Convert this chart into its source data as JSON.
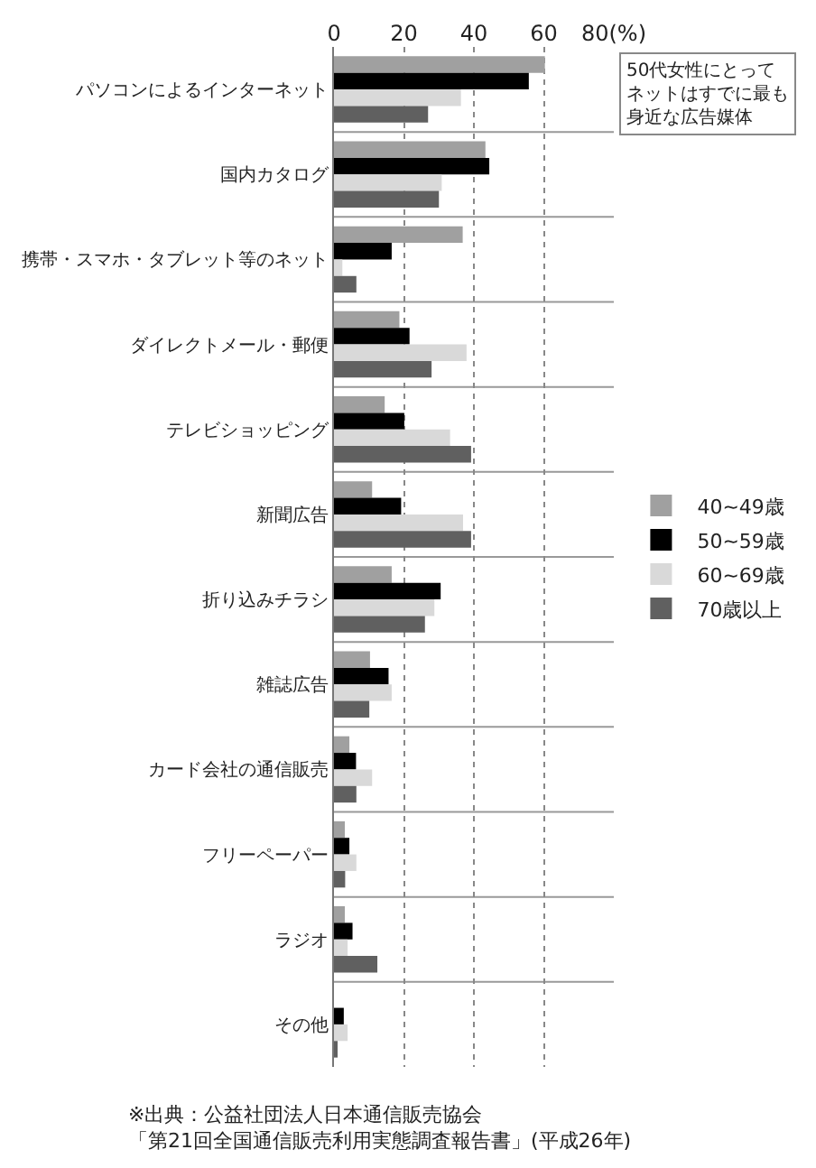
{
  "chart_data": {
    "type": "bar",
    "orientation": "horizontal",
    "categories": [
      "パソコンによるインターネット",
      "国内カタログ",
      "携帯・スマホ・タブレット等のネット",
      "ダイレクトメール・郵便",
      "テレビショッピング",
      "新聞広告",
      "折り込みチラシ",
      "雑誌広告",
      "カード会社の通信販売",
      "フリーペーパー",
      "ラジオ",
      "その他"
    ],
    "series": [
      {
        "name": "40~49歳",
        "color": "#a0a0a0",
        "values": [
          60.3,
          43.3,
          36.8,
          18.7,
          14.5,
          10.9,
          16.5,
          10.3,
          4.4,
          3.1,
          3.1,
          0
        ]
      },
      {
        "name": "50~59歳",
        "color": "#000000",
        "values": [
          55.7,
          44.4,
          16.5,
          21.6,
          20.1,
          19.2,
          30.5,
          15.6,
          6.3,
          4.4,
          5.3,
          2.8
        ]
      },
      {
        "name": "60~69歳",
        "color": "#d9d9d9",
        "values": [
          36.3,
          30.8,
          2.4,
          37.9,
          33.2,
          36.9,
          28.7,
          16.5,
          10.9,
          6.4,
          3.9,
          3.9
        ]
      },
      {
        "name": "70歳以上",
        "color": "#606060",
        "values": [
          26.9,
          30.0,
          6.4,
          27.9,
          39.2,
          39.2,
          26.0,
          10.1,
          6.4,
          3.2,
          12.4,
          0.9
        ]
      }
    ],
    "xlim": [
      0,
      80
    ],
    "xticks": [
      0,
      20,
      40,
      60,
      {
        "value": 80,
        "label": "80(%)"
      }
    ],
    "grid": true,
    "legend": "right",
    "annotations": [
      "50代女性にとってネットはすでに最も身近な広告媒体",
      "※出典：公益社団法人日本通信販売協会「第21回全国通信販売利用実態調査報告書」(平成26年)"
    ]
  }
}
